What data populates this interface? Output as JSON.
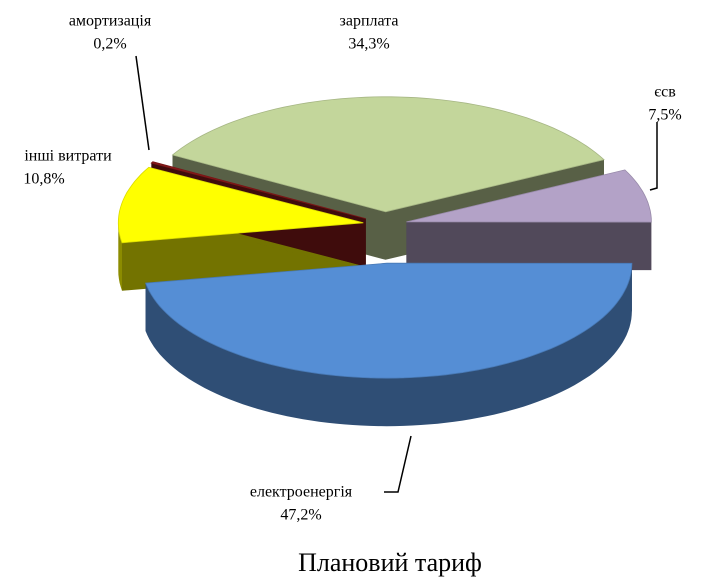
{
  "chart_data": {
    "type": "pie",
    "title": "Плановий тариф",
    "categories": [
      "зарплата",
      "єсв",
      "електроенергія",
      "інші витрати",
      "амортизація"
    ],
    "values": [
      34.3,
      7.5,
      47.2,
      10.8,
      0.2
    ],
    "value_labels": [
      "34,3%",
      "7,5%",
      "47,2%",
      "10,8%",
      "0,2%"
    ],
    "colors": [
      "#c3d69b",
      "#b3a2c7",
      "#558ed5",
      "#ffff00",
      "#8b1a1a"
    ]
  }
}
